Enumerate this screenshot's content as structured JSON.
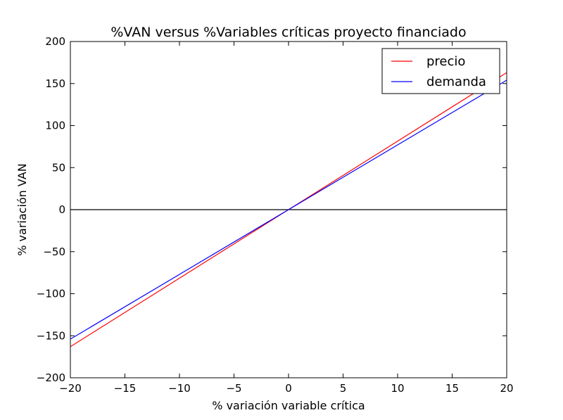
{
  "chart_data": {
    "type": "line",
    "title": "%VAN versus %Variables críticas proyecto financiado",
    "xlabel": "% variación variable crítica",
    "ylabel": "% variación VAN",
    "xlim": [
      -20,
      20
    ],
    "ylim": [
      -200,
      200
    ],
    "xticks": [
      -20,
      -15,
      -10,
      -5,
      0,
      5,
      10,
      15,
      20
    ],
    "yticks": [
      -200,
      -150,
      -100,
      -50,
      0,
      50,
      100,
      150,
      200
    ],
    "xtick_labels": [
      "−20",
      "−15",
      "−10",
      "−5",
      "0",
      "5",
      "10",
      "15",
      "20"
    ],
    "ytick_labels": [
      "−200",
      "−150",
      "−100",
      "−50",
      "0",
      "50",
      "100",
      "150",
      "200"
    ],
    "grid": false,
    "legend_position": "top-right",
    "zero_line": 0,
    "series": [
      {
        "name": "precio",
        "color": "#ff0000",
        "x": [
          -20,
          20
        ],
        "y": [
          -163,
          163
        ]
      },
      {
        "name": "demanda",
        "color": "#0000ff",
        "x": [
          -20,
          20
        ],
        "y": [
          -154,
          154
        ]
      }
    ],
    "zero_line_color": "#000000"
  }
}
